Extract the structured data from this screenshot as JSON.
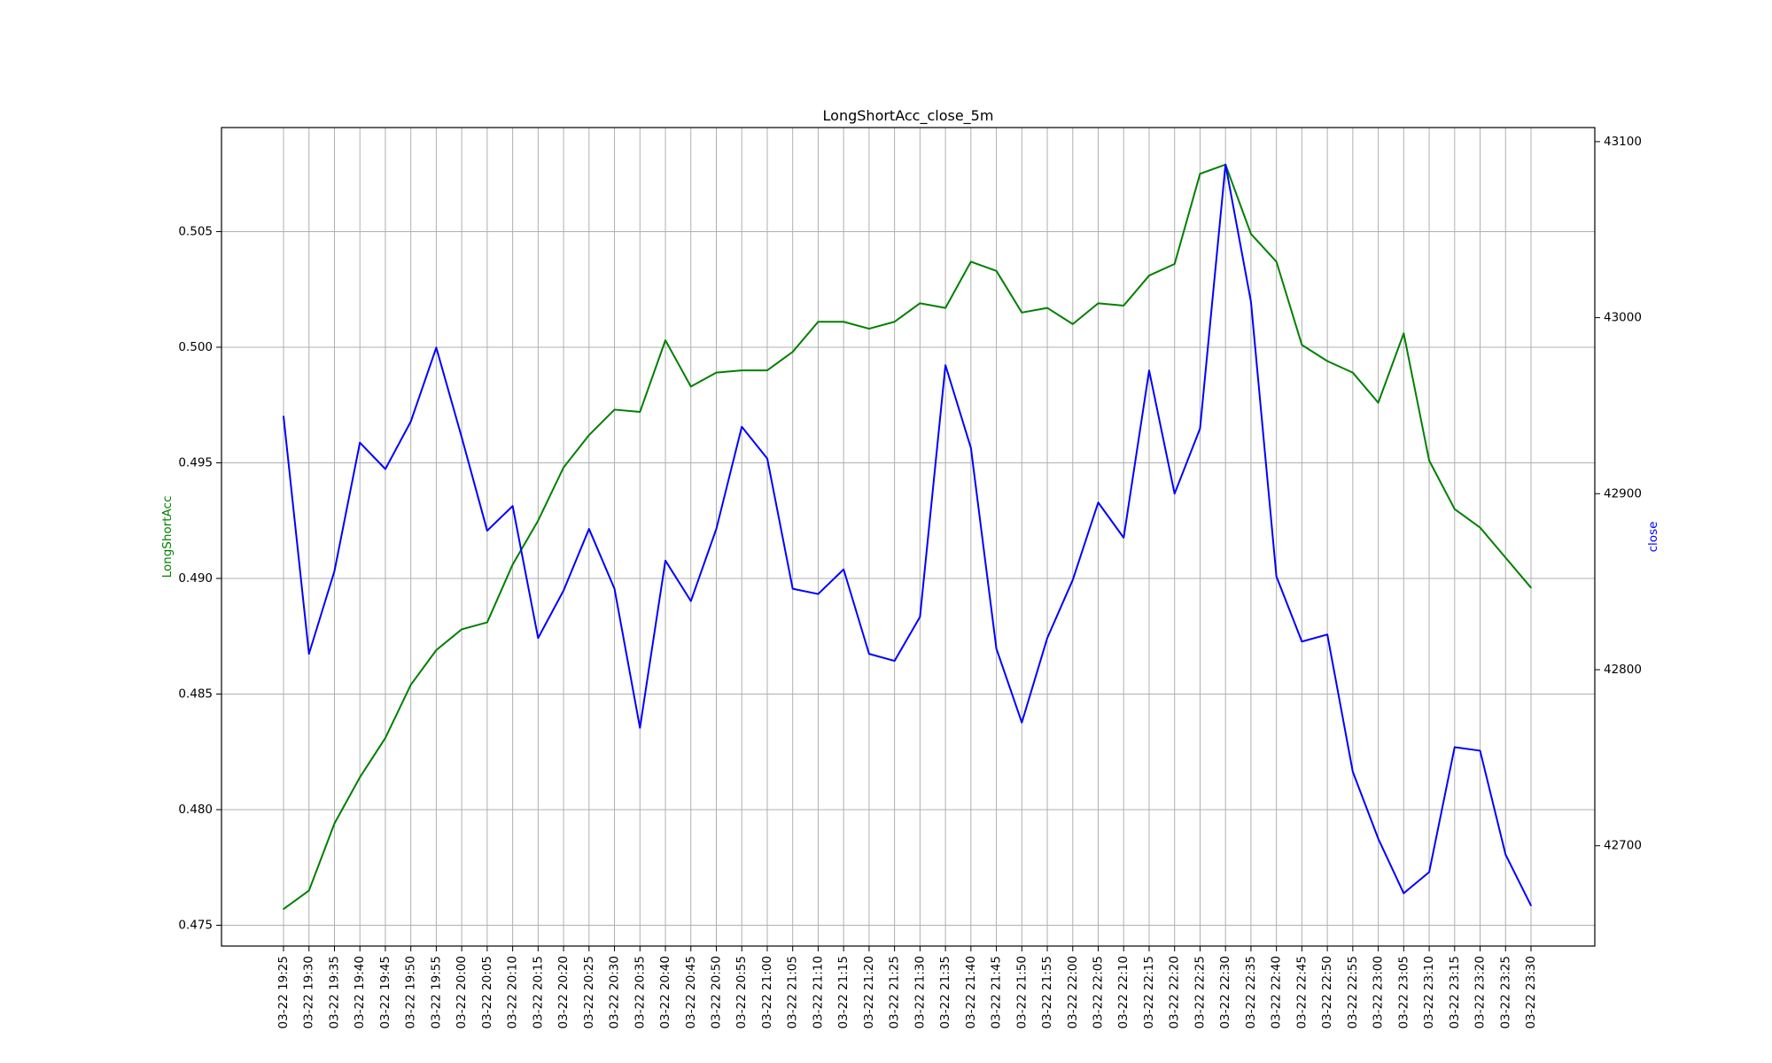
{
  "chart_data": {
    "type": "line",
    "title": "LongShortAcc_close_5m",
    "grid": true,
    "x": [
      "03-22 19:25",
      "03-22 19:30",
      "03-22 19:35",
      "03-22 19:40",
      "03-22 19:45",
      "03-22 19:50",
      "03-22 19:55",
      "03-22 20:00",
      "03-22 20:05",
      "03-22 20:10",
      "03-22 20:15",
      "03-22 20:20",
      "03-22 20:25",
      "03-22 20:30",
      "03-22 20:35",
      "03-22 20:40",
      "03-22 20:45",
      "03-22 20:50",
      "03-22 20:55",
      "03-22 21:00",
      "03-22 21:05",
      "03-22 21:10",
      "03-22 21:15",
      "03-22 21:20",
      "03-22 21:25",
      "03-22 21:30",
      "03-22 21:35",
      "03-22 21:40",
      "03-22 21:45",
      "03-22 21:50",
      "03-22 21:55",
      "03-22 22:00",
      "03-22 22:05",
      "03-22 22:10",
      "03-22 22:15",
      "03-22 22:20",
      "03-22 22:25",
      "03-22 22:30",
      "03-22 22:35",
      "03-22 22:40",
      "03-22 22:45",
      "03-22 22:50",
      "03-22 22:55",
      "03-22 23:00",
      "03-22 23:05",
      "03-22 23:10",
      "03-22 23:15",
      "03-22 23:20",
      "03-22 23:25",
      "03-22 23:30"
    ],
    "left_axis": {
      "label": "LongShortAcc",
      "color": "#008000",
      "ylim": [
        0.4741,
        0.5095
      ],
      "ticks": [
        0.475,
        0.48,
        0.485,
        0.49,
        0.495,
        0.5,
        0.505
      ],
      "tick_labels": [
        "0.475",
        "0.480",
        "0.485",
        "0.490",
        "0.495",
        "0.500",
        "0.505"
      ]
    },
    "right_axis": {
      "label": "close",
      "color": "#0000ff",
      "ylim": [
        42643,
        43108
      ],
      "ticks": [
        42700,
        42800,
        42900,
        43000,
        43100
      ],
      "tick_labels": [
        "42700",
        "42800",
        "42900",
        "43000",
        "43100"
      ]
    },
    "series": [
      {
        "name": "LongShortAcc",
        "axis": "left",
        "color": "#008000",
        "values": [
          0.4757,
          0.4765,
          0.4794,
          0.4814,
          0.4831,
          0.4854,
          0.4869,
          0.4878,
          0.4881,
          0.4906,
          0.4925,
          0.4948,
          0.4962,
          0.4973,
          0.4972,
          0.5003,
          0.4983,
          0.4989,
          0.499,
          0.499,
          0.4998,
          0.5011,
          0.5011,
          0.5008,
          0.5011,
          0.5019,
          0.5017,
          0.5037,
          0.5033,
          0.5015,
          0.5017,
          0.501,
          0.5019,
          0.5018,
          0.5031,
          0.5036,
          0.5075,
          0.5079,
          0.5049,
          0.5037,
          0.5001,
          0.4994,
          0.4989,
          0.4976,
          0.5006,
          0.4951,
          0.493,
          0.4922,
          0.4909,
          0.4896
        ]
      },
      {
        "name": "close",
        "axis": "right",
        "color": "#0000ff",
        "values": [
          42944,
          42809,
          42856,
          42929,
          42914,
          42941,
          42983,
          42932,
          42879,
          42893,
          42818,
          42845,
          42880,
          42846,
          42767,
          42862,
          42839,
          42880,
          42938,
          42920,
          42846,
          42843,
          42857,
          42809,
          42805,
          42830,
          42973,
          42926,
          42812,
          42770,
          42818,
          42851,
          42895,
          42875,
          42970,
          42900,
          42937,
          43087,
          43009,
          42853,
          42816,
          42820,
          42742,
          42704,
          42673,
          42685,
          42756,
          42754,
          42695,
          42666
        ]
      }
    ]
  }
}
